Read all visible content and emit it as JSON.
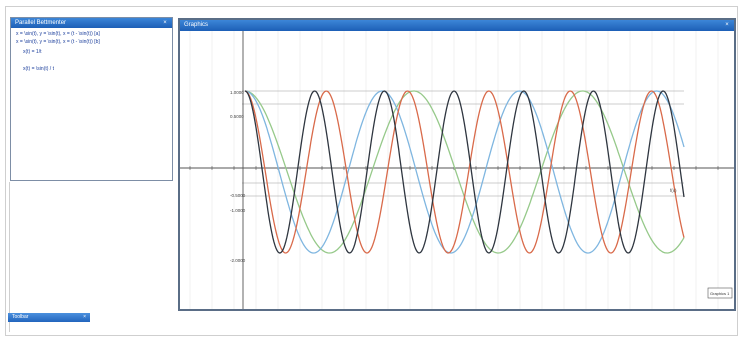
{
  "algebra": {
    "title": "Parallel Bettmenter",
    "close": "×",
    "lines": [
      "x = \\sin(t), y = \\sin(t), x = (t - \\sin(t)) [a]",
      "x = \\sin(t), y = \\sin(t), x = (t - \\sin(t)) [b]",
      "x(t) = 1/t",
      "x(t) = \\sin(t) / t"
    ]
  },
  "graphics": {
    "title": "Graphics",
    "close": "×",
    "y_labels": [
      "1.0000",
      "0.5000",
      "-0.5000",
      "-1.0000",
      "-2.0000"
    ],
    "x_axis_note": "f(x)",
    "corner_label": "Graphics 1"
  },
  "toolbar": {
    "label": "Toolbar",
    "close": "×"
  },
  "colors": {
    "title_bar": "#2a6fcb",
    "dark_curve": "#2f3640",
    "red_curve": "#d96a4a",
    "blue_curve": "#7fb6e0",
    "green_curve": "#96c98a",
    "axis": "#555555",
    "grid": "#e6e6e6"
  }
}
